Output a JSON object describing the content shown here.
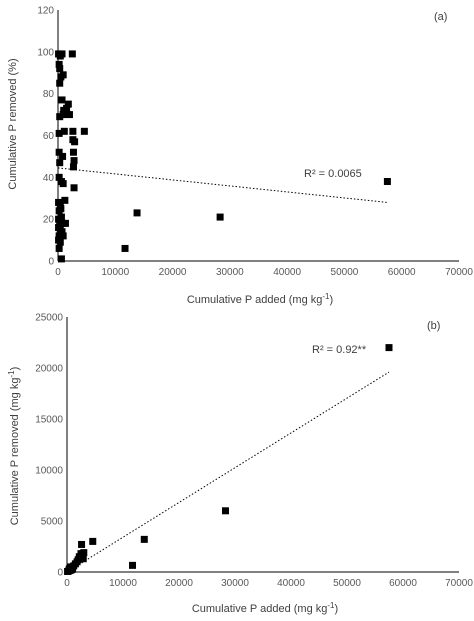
{
  "chart_data": [
    {
      "type": "scatter",
      "panel_label": "(a)",
      "xlabel": "Cumulative P added (mg kg",
      "xlabel_sup": "-1",
      "xlabel_tail": ")",
      "ylabel": "Cumulative P removed (%)",
      "xlim": [
        0,
        70000
      ],
      "ylim": [
        0,
        120
      ],
      "xticks": [
        "0",
        "10000",
        "20000",
        "30000",
        "40000",
        "50000",
        "60000",
        "70000"
      ],
      "yticks": [
        "0",
        "20",
        "40",
        "60",
        "80",
        "100",
        "120"
      ],
      "trendline": {
        "x": [
          0,
          57500
        ],
        "y": [
          44.5,
          28
        ],
        "style": "dotted"
      },
      "annotation": "R² = 0.0065",
      "marker": {
        "shape": "square",
        "color": "#000000"
      },
      "points": [
        [
          100,
          99
        ],
        [
          400,
          98
        ],
        [
          700,
          99
        ],
        [
          2500,
          99
        ],
        [
          200,
          94
        ],
        [
          300,
          92
        ],
        [
          500,
          88
        ],
        [
          900,
          89
        ],
        [
          300,
          85
        ],
        [
          700,
          77
        ],
        [
          1000,
          72
        ],
        [
          1800,
          75
        ],
        [
          1500,
          73
        ],
        [
          2000,
          70
        ],
        [
          300,
          69
        ],
        [
          900,
          70
        ],
        [
          200,
          61
        ],
        [
          1100,
          62
        ],
        [
          2600,
          62
        ],
        [
          4600,
          62
        ],
        [
          2600,
          58
        ],
        [
          2900,
          57
        ],
        [
          200,
          52
        ],
        [
          800,
          50
        ],
        [
          2700,
          52
        ],
        [
          2800,
          48
        ],
        [
          300,
          47
        ],
        [
          2700,
          45
        ],
        [
          200,
          40
        ],
        [
          600,
          38
        ],
        [
          900,
          37
        ],
        [
          2800,
          35
        ],
        [
          1200,
          29
        ],
        [
          100,
          28
        ],
        [
          400,
          26
        ],
        [
          200,
          24
        ],
        [
          500,
          25
        ],
        [
          600,
          21
        ],
        [
          100,
          20
        ],
        [
          300,
          19
        ],
        [
          800,
          18
        ],
        [
          1300,
          18
        ],
        [
          100,
          16
        ],
        [
          400,
          15
        ],
        [
          700,
          14
        ],
        [
          200,
          12
        ],
        [
          900,
          12
        ],
        [
          100,
          10
        ],
        [
          400,
          9
        ],
        [
          200,
          6
        ],
        [
          600,
          1
        ],
        [
          11700,
          6
        ],
        [
          13800,
          23
        ],
        [
          28300,
          21
        ],
        [
          57500,
          38
        ]
      ]
    },
    {
      "type": "scatter",
      "panel_label": "(b)",
      "xlabel": "Cumulative P added (mg kg",
      "xlabel_sup": "-1",
      "xlabel_tail": ")",
      "ylabel": "Cumulative P removed (mg kg",
      "ylabel_sup": "-1",
      "ylabel_tail": ")",
      "xlim": [
        0,
        70000
      ],
      "ylim": [
        0,
        25000
      ],
      "xticks": [
        "0",
        "10000",
        "20000",
        "30000",
        "40000",
        "50000",
        "60000",
        "70000"
      ],
      "yticks": [
        "0",
        "5000",
        "10000",
        "15000",
        "20000",
        "25000"
      ],
      "trendline": {
        "x": [
          0,
          57500
        ],
        "y": [
          0,
          19600
        ],
        "style": "dotted"
      },
      "annotation": "R² = 0.92**",
      "marker": {
        "shape": "square",
        "color": "#000000"
      },
      "points": [
        [
          100,
          50
        ],
        [
          300,
          100
        ],
        [
          500,
          150
        ],
        [
          700,
          200
        ],
        [
          900,
          250
        ],
        [
          400,
          300
        ],
        [
          1000,
          400
        ],
        [
          600,
          500
        ],
        [
          1200,
          600
        ],
        [
          1500,
          800
        ],
        [
          1800,
          1000
        ],
        [
          2000,
          1200
        ],
        [
          2200,
          1500
        ],
        [
          2500,
          1800
        ],
        [
          2700,
          1600
        ],
        [
          2900,
          1300
        ],
        [
          3000,
          1900
        ],
        [
          2600,
          2700
        ],
        [
          4600,
          3000
        ],
        [
          11700,
          650
        ],
        [
          13800,
          3200
        ],
        [
          28300,
          6000
        ],
        [
          57500,
          22000
        ]
      ]
    }
  ]
}
